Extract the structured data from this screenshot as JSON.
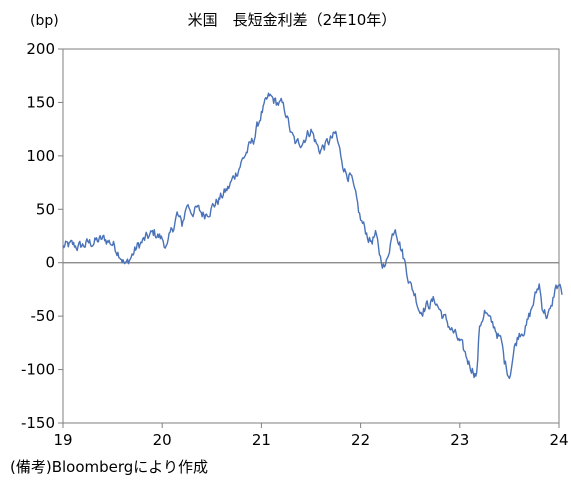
{
  "chart_data": {
    "type": "line",
    "title": "米国　長短金利差（2年10年）",
    "unit_label": "(bp)",
    "source_note": "(備考)Bloombergにより作成",
    "xlim": [
      2019,
      2024
    ],
    "ylim": [
      -150,
      200
    ],
    "x_ticks": [
      {
        "value": 2019,
        "label": "19"
      },
      {
        "value": 2020,
        "label": "20"
      },
      {
        "value": 2021,
        "label": "21"
      },
      {
        "value": 2022,
        "label": "22"
      },
      {
        "value": 2023,
        "label": "23"
      },
      {
        "value": 2024,
        "label": "24"
      }
    ],
    "y_ticks": [
      200,
      150,
      100,
      50,
      0,
      -50,
      -100,
      -150
    ],
    "zero_line": true,
    "grid": false,
    "line_color": "#4a72b8",
    "zero_line_color": "#7f7f7f",
    "series": [
      {
        "x": [
          2019.0,
          2019.08,
          2019.17,
          2019.25,
          2019.33,
          2019.42,
          2019.5,
          2019.58,
          2019.63,
          2019.67,
          2019.75,
          2019.83,
          2019.92,
          2020.0,
          2020.05,
          2020.1,
          2020.15,
          2020.2,
          2020.25,
          2020.3,
          2020.35,
          2020.42,
          2020.5,
          2020.58,
          2020.67,
          2020.75,
          2020.83,
          2020.92,
          2021.0,
          2021.08,
          2021.15,
          2021.2,
          2021.25,
          2021.3,
          2021.35,
          2021.42,
          2021.5,
          2021.58,
          2021.67,
          2021.75,
          2021.8,
          2021.85,
          2021.9,
          2021.95,
          2022.0,
          2022.05,
          2022.1,
          2022.15,
          2022.2,
          2022.25,
          2022.3,
          2022.35,
          2022.42,
          2022.5,
          2022.55,
          2022.6,
          2022.67,
          2022.75,
          2022.83,
          2022.9,
          2023.0,
          2023.1,
          2023.17,
          2023.2,
          2023.25,
          2023.3,
          2023.35,
          2023.42,
          2023.45,
          2023.5,
          2023.55,
          2023.6,
          2023.67,
          2023.75,
          2023.8,
          2023.83,
          2023.88,
          2023.92,
          2023.96,
          2024.0,
          2024.03
        ],
        "values": [
          15,
          16,
          15,
          18,
          20,
          22,
          18,
          8,
          -3,
          3,
          15,
          22,
          28,
          22,
          15,
          30,
          45,
          35,
          55,
          48,
          50,
          45,
          52,
          60,
          70,
          85,
          100,
          115,
          140,
          155,
          150,
          148,
          140,
          120,
          110,
          115,
          125,
          105,
          112,
          120,
          100,
          85,
          80,
          60,
          40,
          30,
          20,
          25,
          5,
          -5,
          20,
          35,
          10,
          -20,
          -30,
          -45,
          -40,
          -35,
          -50,
          -60,
          -75,
          -95,
          -105,
          -60,
          -45,
          -55,
          -60,
          -75,
          -92,
          -105,
          -80,
          -65,
          -60,
          -35,
          -20,
          -40,
          -50,
          -45,
          -25,
          -20,
          -30
        ]
      }
    ]
  }
}
